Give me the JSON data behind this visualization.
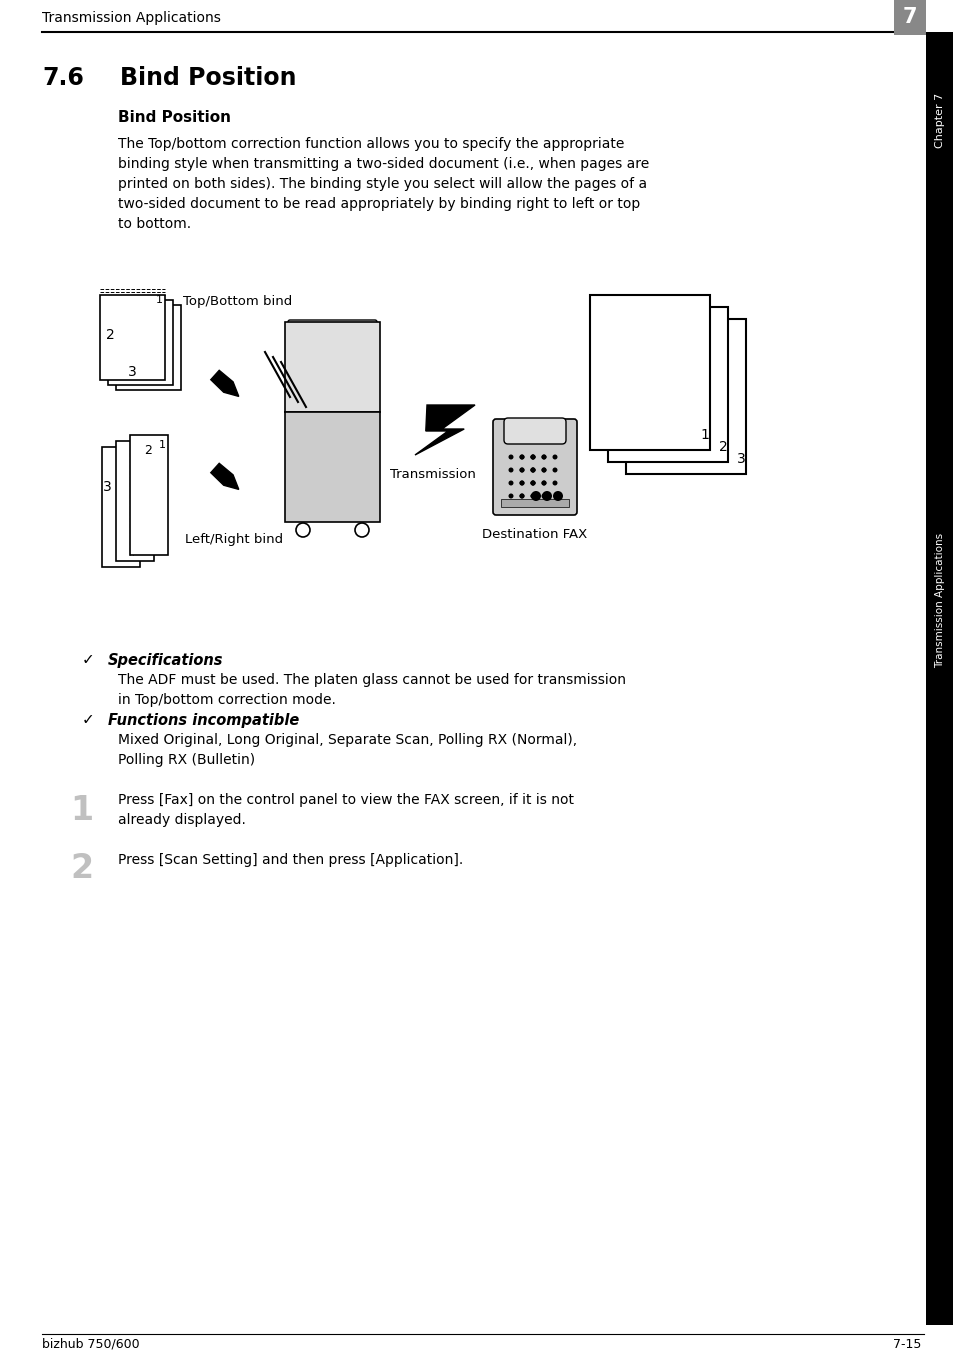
{
  "page_title": "Transmission Applications",
  "chapter_number": "7",
  "section_number": "7.6",
  "section_title": "Bind Position",
  "subsection_title": "Bind Position",
  "body_line1": "The Top/bottom correction function allows you to specify the appropriate",
  "body_line2": "binding style when transmitting a two-sided document (i.e., when pages are",
  "body_line3": "printed on both sides). The binding style you select will allow the pages of a",
  "body_line4": "two-sided document to be read appropriately by binding right to left or top",
  "body_line5": "to bottom.",
  "diag_top_label": "Top/Bottom bind",
  "diag_bottom_label": "Left/Right bind",
  "diag_transmission": "Transmission",
  "diag_destination": "Destination FAX",
  "specs_title": "Specifications",
  "specs_line1": "The ADF must be used. The platen glass cannot be used for transmission",
  "specs_line2": "in Top/bottom correction mode.",
  "func_title": "Functions incompatible",
  "func_line1": "Mixed Original, Long Original, Separate Scan, Polling RX (Normal),",
  "func_line2": "Polling RX (Bulletin)",
  "step1_num": "1",
  "step1_line1": "Press [Fax] on the control panel to view the FAX screen, if it is not",
  "step1_line2": "already displayed.",
  "step2_num": "2",
  "step2_text": "Press [Scan Setting] and then press [Application].",
  "footer_left": "bizhub 750/600",
  "footer_right": "7-15",
  "sidebar_text": "Transmission Applications",
  "chapter_tab": "Chapter 7",
  "bg": "#ffffff",
  "black": "#000000",
  "gray_tab": "#888888",
  "step_gray": "#c0c0c0",
  "cop_gray": "#cccccc",
  "cop_gray2": "#e0e0e0",
  "fax_gray": "#cccccc"
}
